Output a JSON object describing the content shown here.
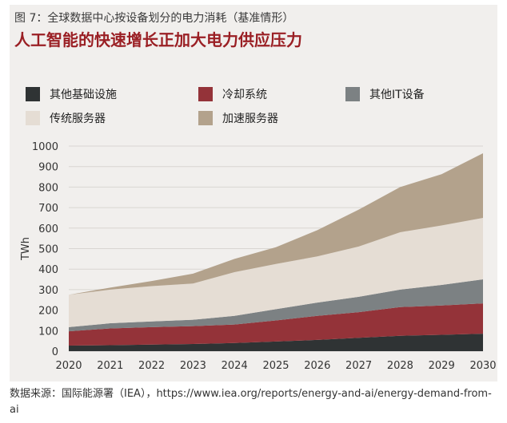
{
  "figure_label": "图 7：全球数据中心按设备划分的电力消耗（基准情形）",
  "title": "人工智能的快速增长正加大电力供应压力",
  "source": "数据来源：国际能源署（IEA），https://www.iea.org/reports/energy-and-ai/energy-demand-from-ai",
  "colors": {
    "other_infra": "#2f3334",
    "cooling": "#943339",
    "other_it": "#7c8183",
    "conventional_servers": "#e5ddd4",
    "accelerated_servers": "#b3a28c",
    "title": "#9a1f24",
    "panel": "#f1efed"
  },
  "chart_data": {
    "type": "area",
    "stacked": true,
    "ylabel": "TWh",
    "xlabel": "",
    "ylim": [
      0,
      1000
    ],
    "yticks": [
      0,
      100,
      200,
      300,
      400,
      500,
      600,
      700,
      800,
      900,
      1000
    ],
    "x": [
      "2020",
      "2021",
      "2022",
      "2023",
      "2024",
      "2025",
      "2026",
      "2027",
      "2028",
      "2029",
      "2030"
    ],
    "series": [
      {
        "key": "other_infra",
        "name": "其他基础设施",
        "values": [
          27,
          29,
          32,
          35,
          40,
          47,
          55,
          65,
          75,
          80,
          85
        ]
      },
      {
        "key": "cooling",
        "name": "冷却系统",
        "values": [
          70,
          82,
          85,
          87,
          90,
          103,
          117,
          125,
          140,
          143,
          148
        ]
      },
      {
        "key": "other_it",
        "name": "其他IT设备",
        "values": [
          20,
          25,
          28,
          31,
          42,
          55,
          65,
          75,
          85,
          100,
          117
        ]
      },
      {
        "key": "conventional_servers",
        "name": "传统服务器",
        "values": [
          158,
          164,
          172,
          177,
          213,
          220,
          225,
          245,
          280,
          290,
          300
        ]
      },
      {
        "key": "accelerated_servers",
        "name": "加速服务器",
        "values": [
          0,
          10,
          25,
          48,
          65,
          82,
          128,
          180,
          220,
          250,
          315
        ]
      }
    ],
    "legend": [
      {
        "key": "other_infra",
        "label": "其他基础设施"
      },
      {
        "key": "cooling",
        "label": "冷却系统"
      },
      {
        "key": "other_it",
        "label": "其他IT设备"
      },
      {
        "key": "conventional_servers",
        "label": "传统服务器"
      },
      {
        "key": "accelerated_servers",
        "label": "加速服务器"
      }
    ]
  }
}
